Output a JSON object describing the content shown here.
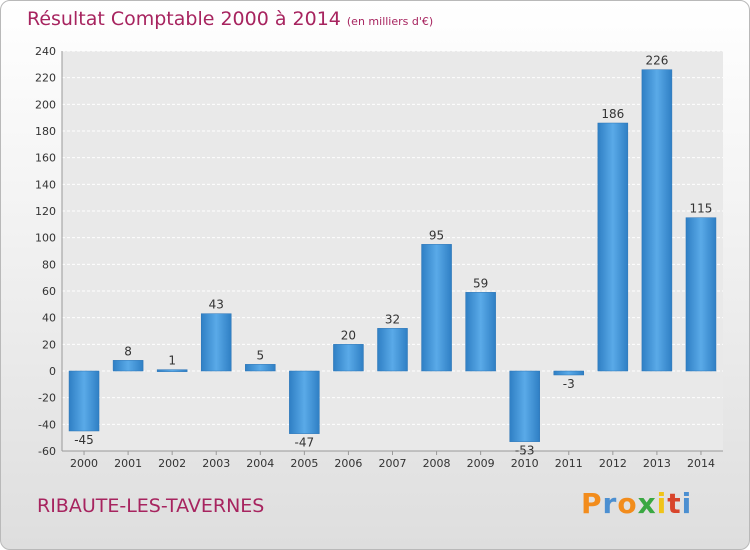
{
  "title": "Résultat Comptable 2000 à 2014",
  "subtitle": "(en milliers d'€)",
  "commune": "RIBAUTE-LES-TAVERNES",
  "logo": {
    "letters": [
      "P",
      "r",
      "o",
      "x",
      "i",
      "t",
      "i"
    ],
    "colors": [
      "#f28c1c",
      "#4b8fd1",
      "#f28c1c",
      "#3aa842",
      "#f0c419",
      "#d8452c",
      "#4b8fd1"
    ]
  },
  "chart_data": {
    "type": "bar",
    "title": "Résultat Comptable 2000 à 2014",
    "ylabel": "en milliers d'€",
    "categories": [
      "2000",
      "2001",
      "2002",
      "2003",
      "2004",
      "2005",
      "2006",
      "2007",
      "2008",
      "2009",
      "2010",
      "2011",
      "2012",
      "2013",
      "2014"
    ],
    "values": [
      -45,
      8,
      1,
      43,
      5,
      -47,
      20,
      32,
      95,
      59,
      -53,
      -3,
      186,
      226,
      115
    ],
    "ylim": [
      -60,
      240
    ],
    "yticks": [
      -60,
      -40,
      -20,
      0,
      20,
      40,
      60,
      80,
      100,
      120,
      140,
      160,
      180,
      200,
      220,
      240
    ],
    "grid": true,
    "bar_color": "#3b8fd6"
  }
}
